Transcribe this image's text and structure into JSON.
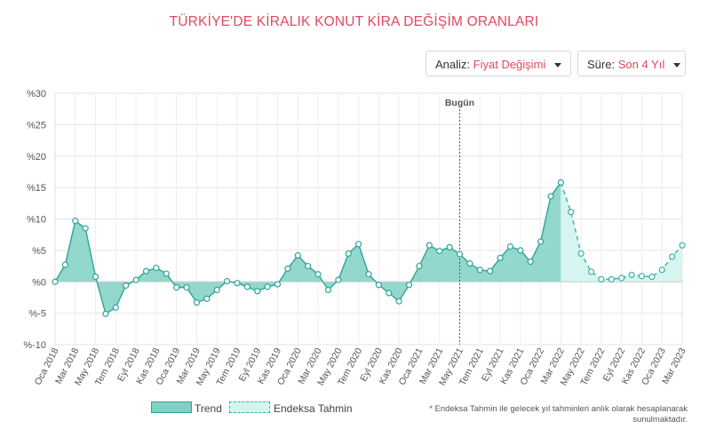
{
  "header": {
    "title": "TÜRKİYE'DE KİRALIK KONUT KİRA DEĞİŞİM ORANLARI"
  },
  "controls": {
    "analiz_label": "Analiz:",
    "analiz_value": "Fiyat Değişimi",
    "sure_label": "Süre:",
    "sure_value": "Son 4 Yıl"
  },
  "legend": {
    "trend": "Trend",
    "tahmin": "Endeksa Tahmin"
  },
  "note": "* Endeksa Tahmin ile gelecek yıl tahminleri anlık olarak hesaplanarak sunulmaktadır.",
  "colors": {
    "title": "#e0485e",
    "trend_fill": "#7fd1c4",
    "trend_line": "#2ea398",
    "forecast_fill": "#d6f5f0",
    "forecast_line": "#37b2a6"
  },
  "chart_data": {
    "type": "area",
    "ylim": [
      -10,
      30
    ],
    "yticks": [
      -10,
      -5,
      0,
      5,
      10,
      15,
      20,
      25,
      30
    ],
    "ytick_labels": [
      "%-10",
      "%-5",
      "%0",
      "%5",
      "%10",
      "%15",
      "%20",
      "%25",
      "%30"
    ],
    "x_labels": [
      "Oca 2018",
      "Mar 2018",
      "May 2018",
      "Tem 2018",
      "Eyl 2018",
      "Kas 2018",
      "Oca 2019",
      "Mar 2019",
      "May 2019",
      "Tem 2019",
      "Eyl 2019",
      "Kas 2019",
      "Oca 2020",
      "Mar 2020",
      "May 2020",
      "Tem 2020",
      "Eyl 2020",
      "Kas 2020",
      "Oca 2021",
      "Mar 2021",
      "May 2021",
      "Tem 2021",
      "Eyl 2021",
      "Kas 2021",
      "Oca 2022",
      "Mar 2022",
      "May 2022",
      "Tem 2022",
      "Eyl 2022",
      "Kas 2022",
      "Oca 2023",
      "Mar 2023"
    ],
    "today_label": "Bugün",
    "today_index": 40,
    "series": [
      {
        "name": "Trend",
        "values": [
          0.0,
          2.7,
          9.7,
          8.5,
          0.8,
          -5.1,
          -4.1,
          -0.6,
          0.3,
          1.7,
          2.2,
          1.3,
          -0.9,
          -0.9,
          -3.3,
          -2.7,
          -1.3,
          0.1,
          -0.2,
          -0.8,
          -1.5,
          -0.8,
          -0.4,
          2.1,
          4.2,
          2.5,
          1.2,
          -1.3,
          0.3,
          4.5,
          6.0,
          1.2,
          -0.5,
          -1.8,
          -3.1,
          -0.5,
          2.5,
          5.8,
          4.9,
          5.5,
          4.4,
          2.9,
          1.9,
          1.7,
          3.8,
          5.6,
          5.0,
          3.2,
          6.4,
          13.6,
          15.8
        ]
      },
      {
        "name": "Endeksa Tahmin",
        "values": [
          15.8,
          11.1,
          4.5,
          1.6,
          0.4,
          0.4,
          0.6,
          1.1,
          0.9,
          0.8,
          1.9,
          4.0,
          5.8
        ]
      }
    ]
  }
}
